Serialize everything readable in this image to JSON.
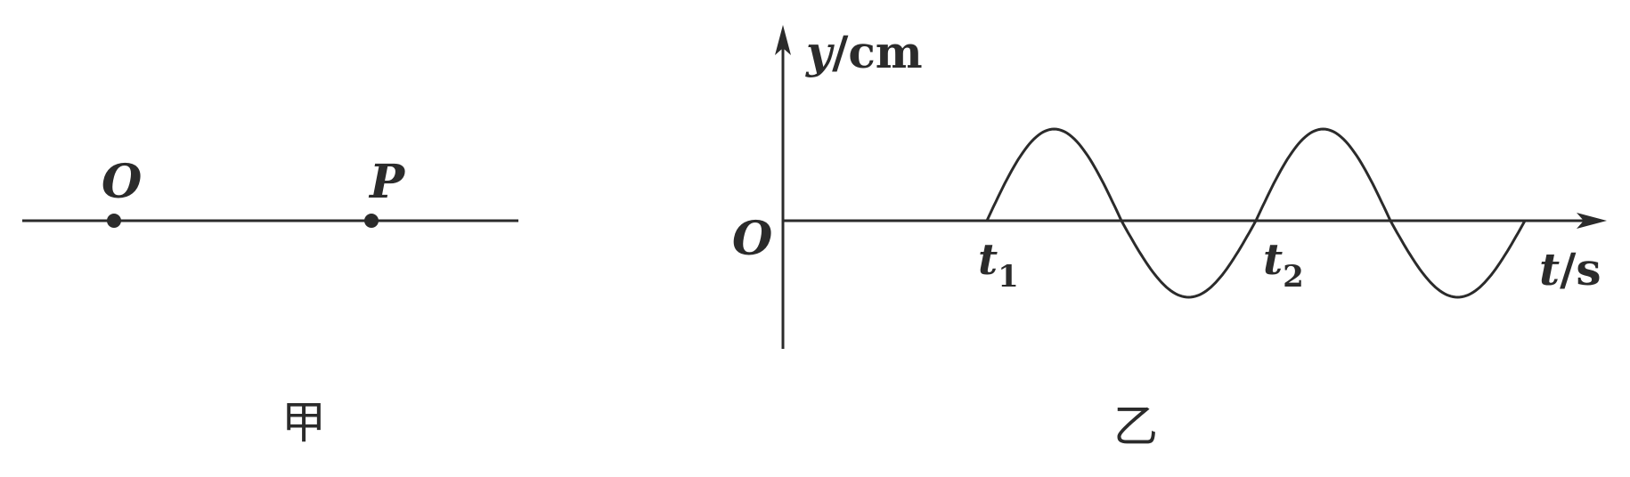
{
  "left_figure": {
    "points": [
      {
        "label": "O"
      },
      {
        "label": "P"
      }
    ],
    "caption": "甲"
  },
  "right_figure": {
    "origin_label": "O",
    "y_axis": {
      "var": "y",
      "unit": "/cm"
    },
    "x_axis": {
      "var": "t",
      "unit": "/s"
    },
    "t1": {
      "var": "t",
      "sub": "1"
    },
    "t2": {
      "var": "t",
      "sub": "2"
    },
    "caption": "乙"
  },
  "colors": {
    "ink": "#2b2b2b"
  }
}
